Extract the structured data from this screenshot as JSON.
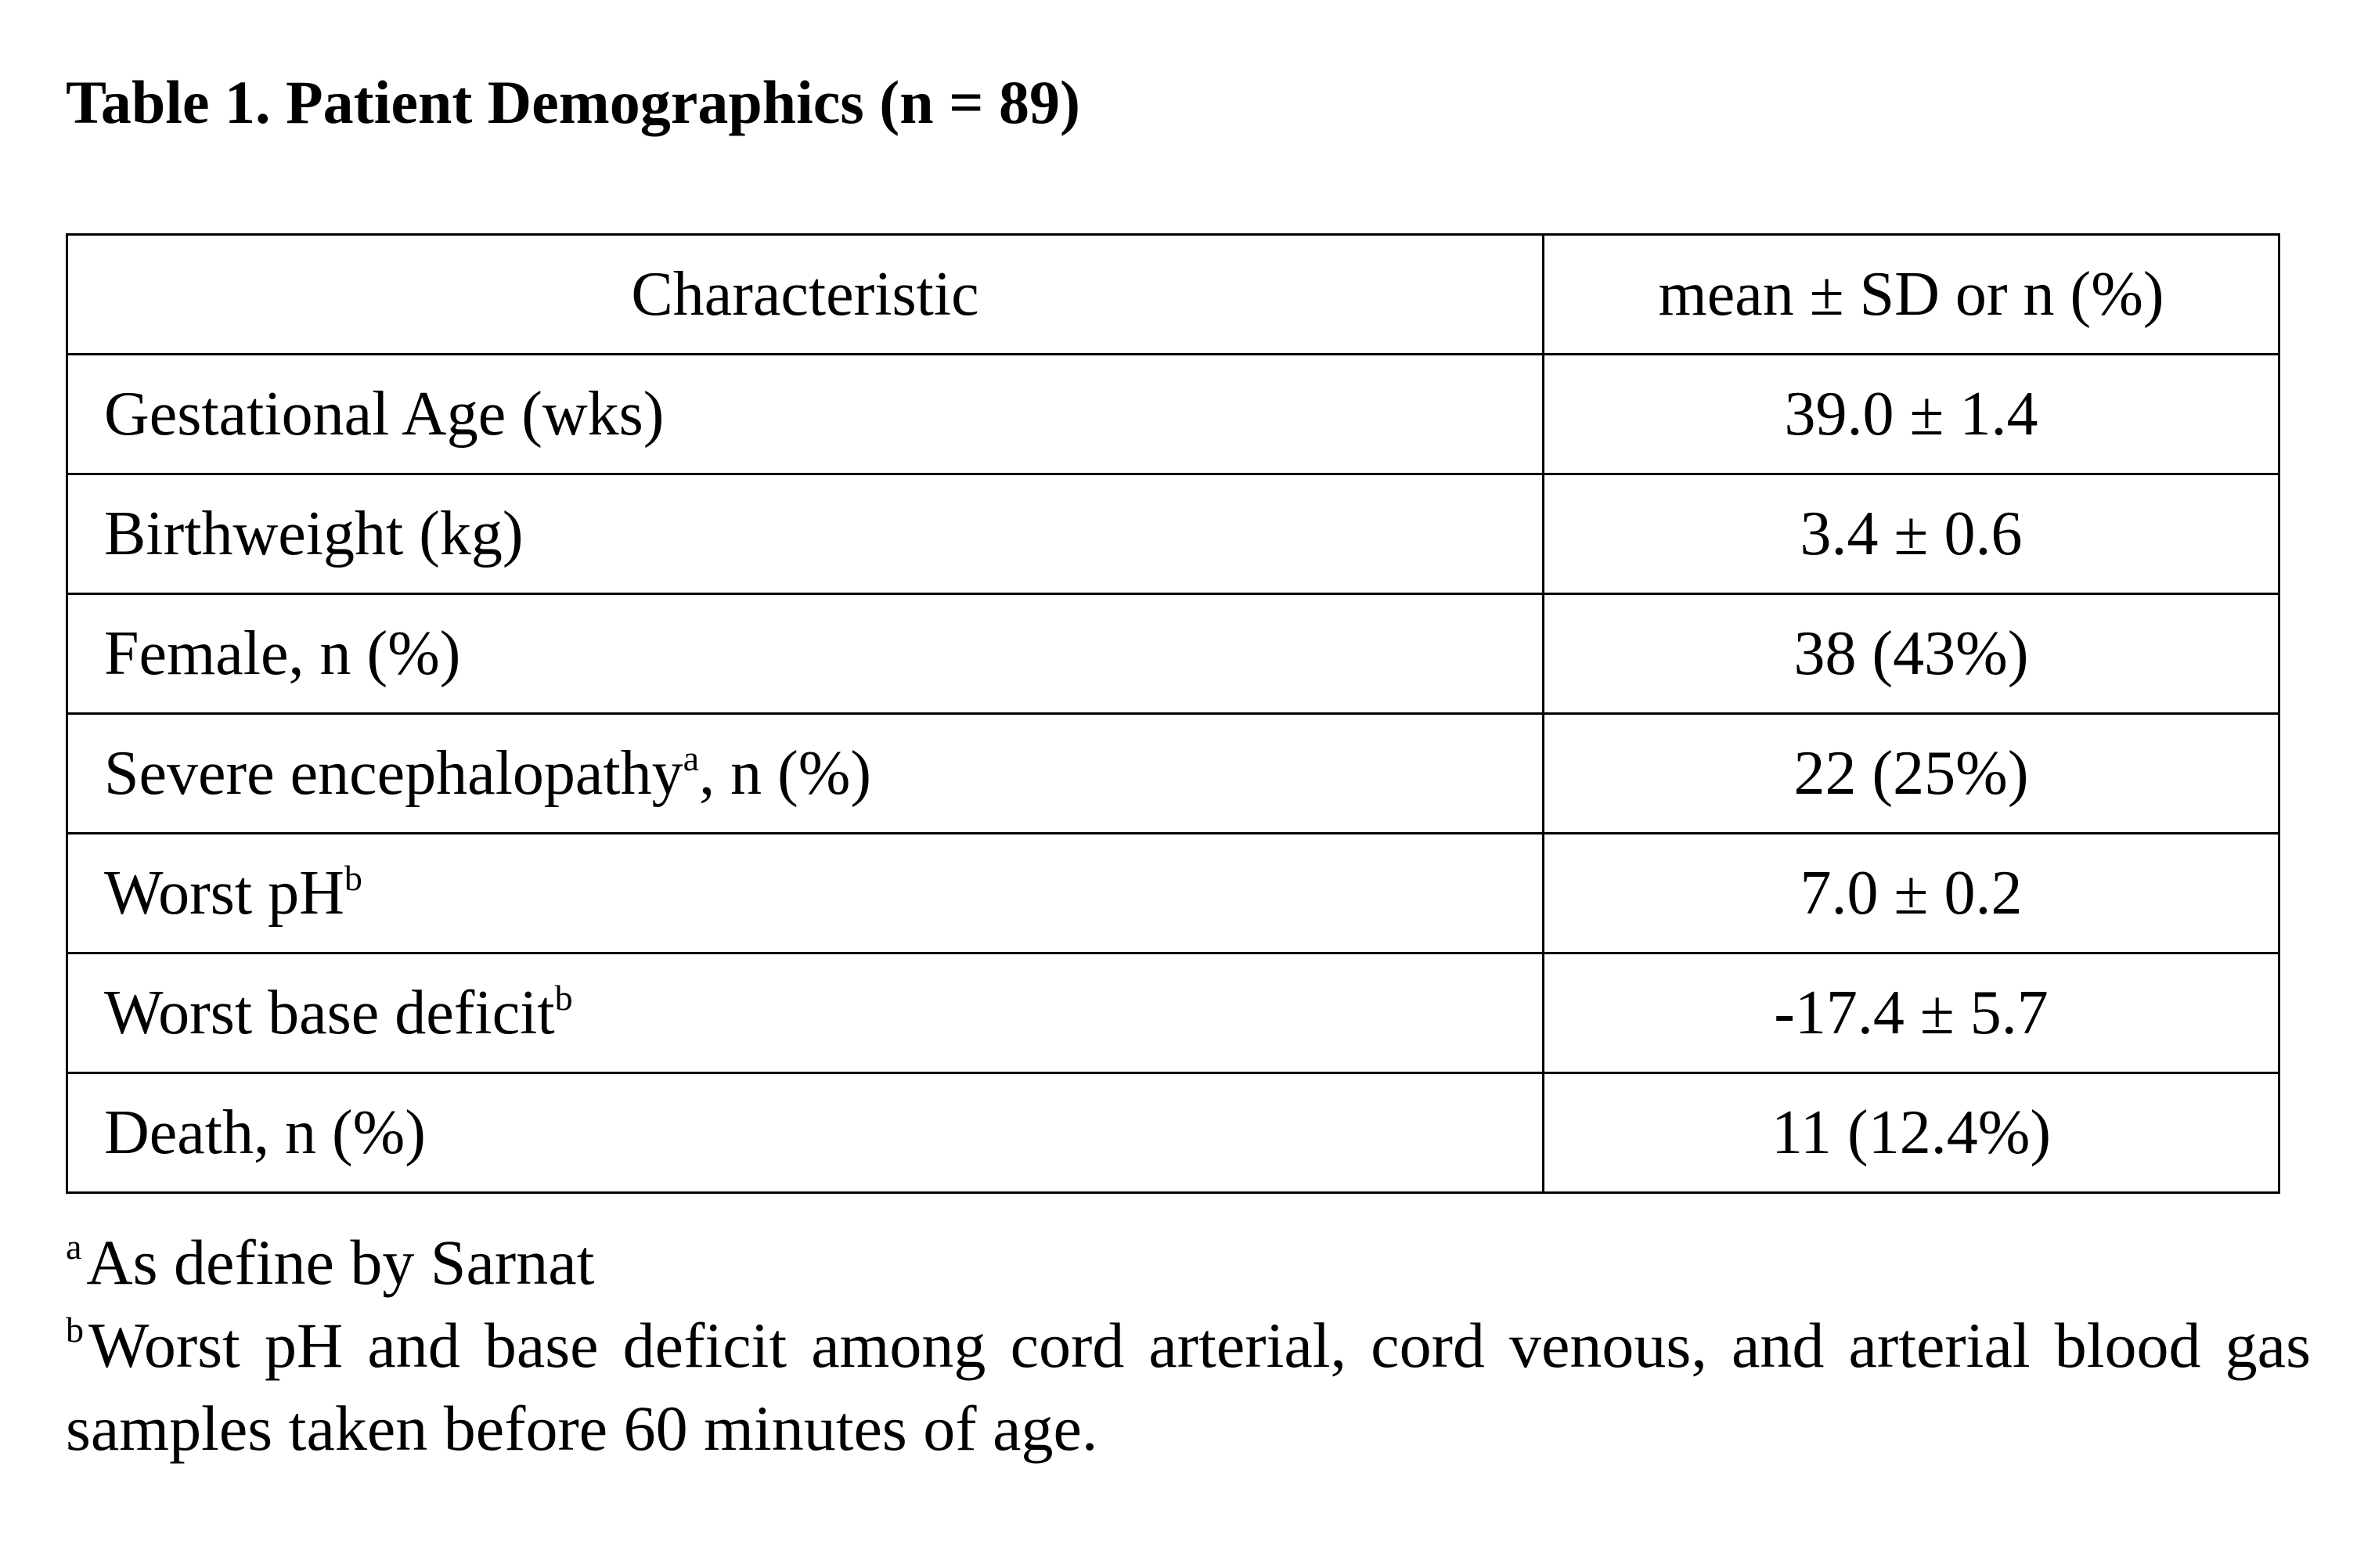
{
  "title": "Table 1. Patient Demographics (n = 89)",
  "table": {
    "headers": [
      "Characteristic",
      "mean ± SD or n (%)"
    ],
    "rows": [
      {
        "label": "Gestational Age (wks)",
        "sup": "",
        "label_after": "",
        "value": "39.0 ± 1.4"
      },
      {
        "label": "Birthweight (kg)",
        "sup": "",
        "label_after": "",
        "value": "3.4 ± 0.6"
      },
      {
        "label": "Female, n (%)",
        "sup": "",
        "label_after": "",
        "value": "38 (43%)"
      },
      {
        "label": "Severe encephalopathy",
        "sup": "a",
        "label_after": ", n (%)",
        "value": "22 (25%)"
      },
      {
        "label": "Worst pH",
        "sup": "b",
        "label_after": "",
        "value": "7.0 ± 0.2"
      },
      {
        "label": "Worst base deficit",
        "sup": "b",
        "label_after": "",
        "value": "-17.4 ± 5.7"
      },
      {
        "label": "Death, n (%)",
        "sup": "",
        "label_after": "",
        "value": "11 (12.4%)"
      }
    ]
  },
  "footnotes": [
    {
      "mark": "a",
      "text": "As define by Sarnat"
    },
    {
      "mark": "b",
      "text": "Worst pH and base deficit among cord arterial, cord venous, and arterial blood gas samples taken before 60 minutes of age."
    }
  ]
}
